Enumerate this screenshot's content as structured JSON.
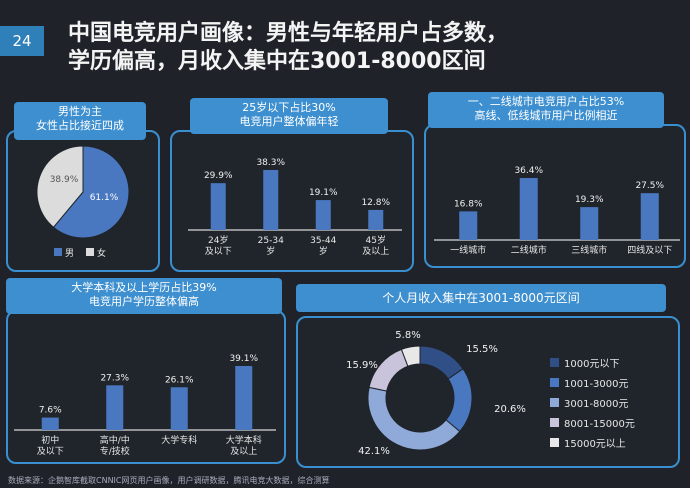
{
  "page_number": "24",
  "title_line1": "中国电竞用户画像：男性与年轻用户占多数，",
  "title_line2": "学历偏高，月收入集中在3001-8000区间",
  "panels": {
    "gender": {
      "header1": "男性为主",
      "header2": "女性占比接近四成"
    },
    "age": {
      "header1": "25岁以下占比30%",
      "header2": "电竞用户整体偏年轻"
    },
    "city": {
      "header1": "一、二线城市电竞用户占比53%",
      "header2": "高线、低线城市用户比例相近"
    },
    "edu": {
      "header1": "大学本科及以上学历占比39%",
      "header2": "电竞用户学历整体偏高"
    },
    "income": {
      "header1": "个人月收入集中在3001-8000元区间"
    }
  },
  "footer": "数据来源：企鹅智库截取CNNIC网页用户画像，用户调研数据，腾讯电竞大数据，综合测算",
  "chart_data": [
    {
      "id": "gender",
      "type": "pie",
      "categories": [
        "男",
        "女"
      ],
      "values": [
        61.1,
        38.9
      ],
      "labels": [
        "61.1%",
        "38.9%"
      ],
      "legend": [
        "男",
        "女"
      ],
      "colors": [
        "#4a78c0",
        "#dcdcdc"
      ]
    },
    {
      "id": "age",
      "type": "bar",
      "categories": [
        "24岁\n及以下",
        "25-34\n岁",
        "35-44\n岁",
        "45岁\n及以上"
      ],
      "values": [
        29.9,
        38.3,
        19.1,
        12.8
      ],
      "labels": [
        "29.9%",
        "38.3%",
        "19.1%",
        "12.8%"
      ],
      "color": "#4a78c0"
    },
    {
      "id": "city",
      "type": "bar",
      "categories": [
        "一线城市",
        "二线城市",
        "三线城市",
        "四线及以下"
      ],
      "values": [
        16.8,
        36.4,
        19.3,
        27.5
      ],
      "labels": [
        "16.8%",
        "36.4%",
        "19.3%",
        "27.5%"
      ],
      "color": "#4a78c0"
    },
    {
      "id": "edu",
      "type": "bar",
      "categories": [
        "初中\n及以下",
        "高中/中\n专/技校",
        "大学专科",
        "大学本科\n及以上"
      ],
      "values": [
        7.6,
        27.3,
        26.1,
        39.1
      ],
      "labels": [
        "7.6%",
        "27.3%",
        "26.1%",
        "39.1%"
      ],
      "color": "#4a78c0"
    },
    {
      "id": "income",
      "type": "pie",
      "categories": [
        "1000元以下",
        "1001-3000元",
        "3001-8000元",
        "8001-15000元",
        "15000元以上"
      ],
      "values": [
        15.5,
        20.6,
        42.1,
        15.9,
        5.8
      ],
      "labels": [
        "15.5%",
        "20.6%",
        "42.1%",
        "15.9%",
        "5.8%"
      ],
      "colors": [
        "#2f4f86",
        "#4a78c0",
        "#8fa9d8",
        "#c9c3dc",
        "#e8e8e8"
      ]
    }
  ]
}
